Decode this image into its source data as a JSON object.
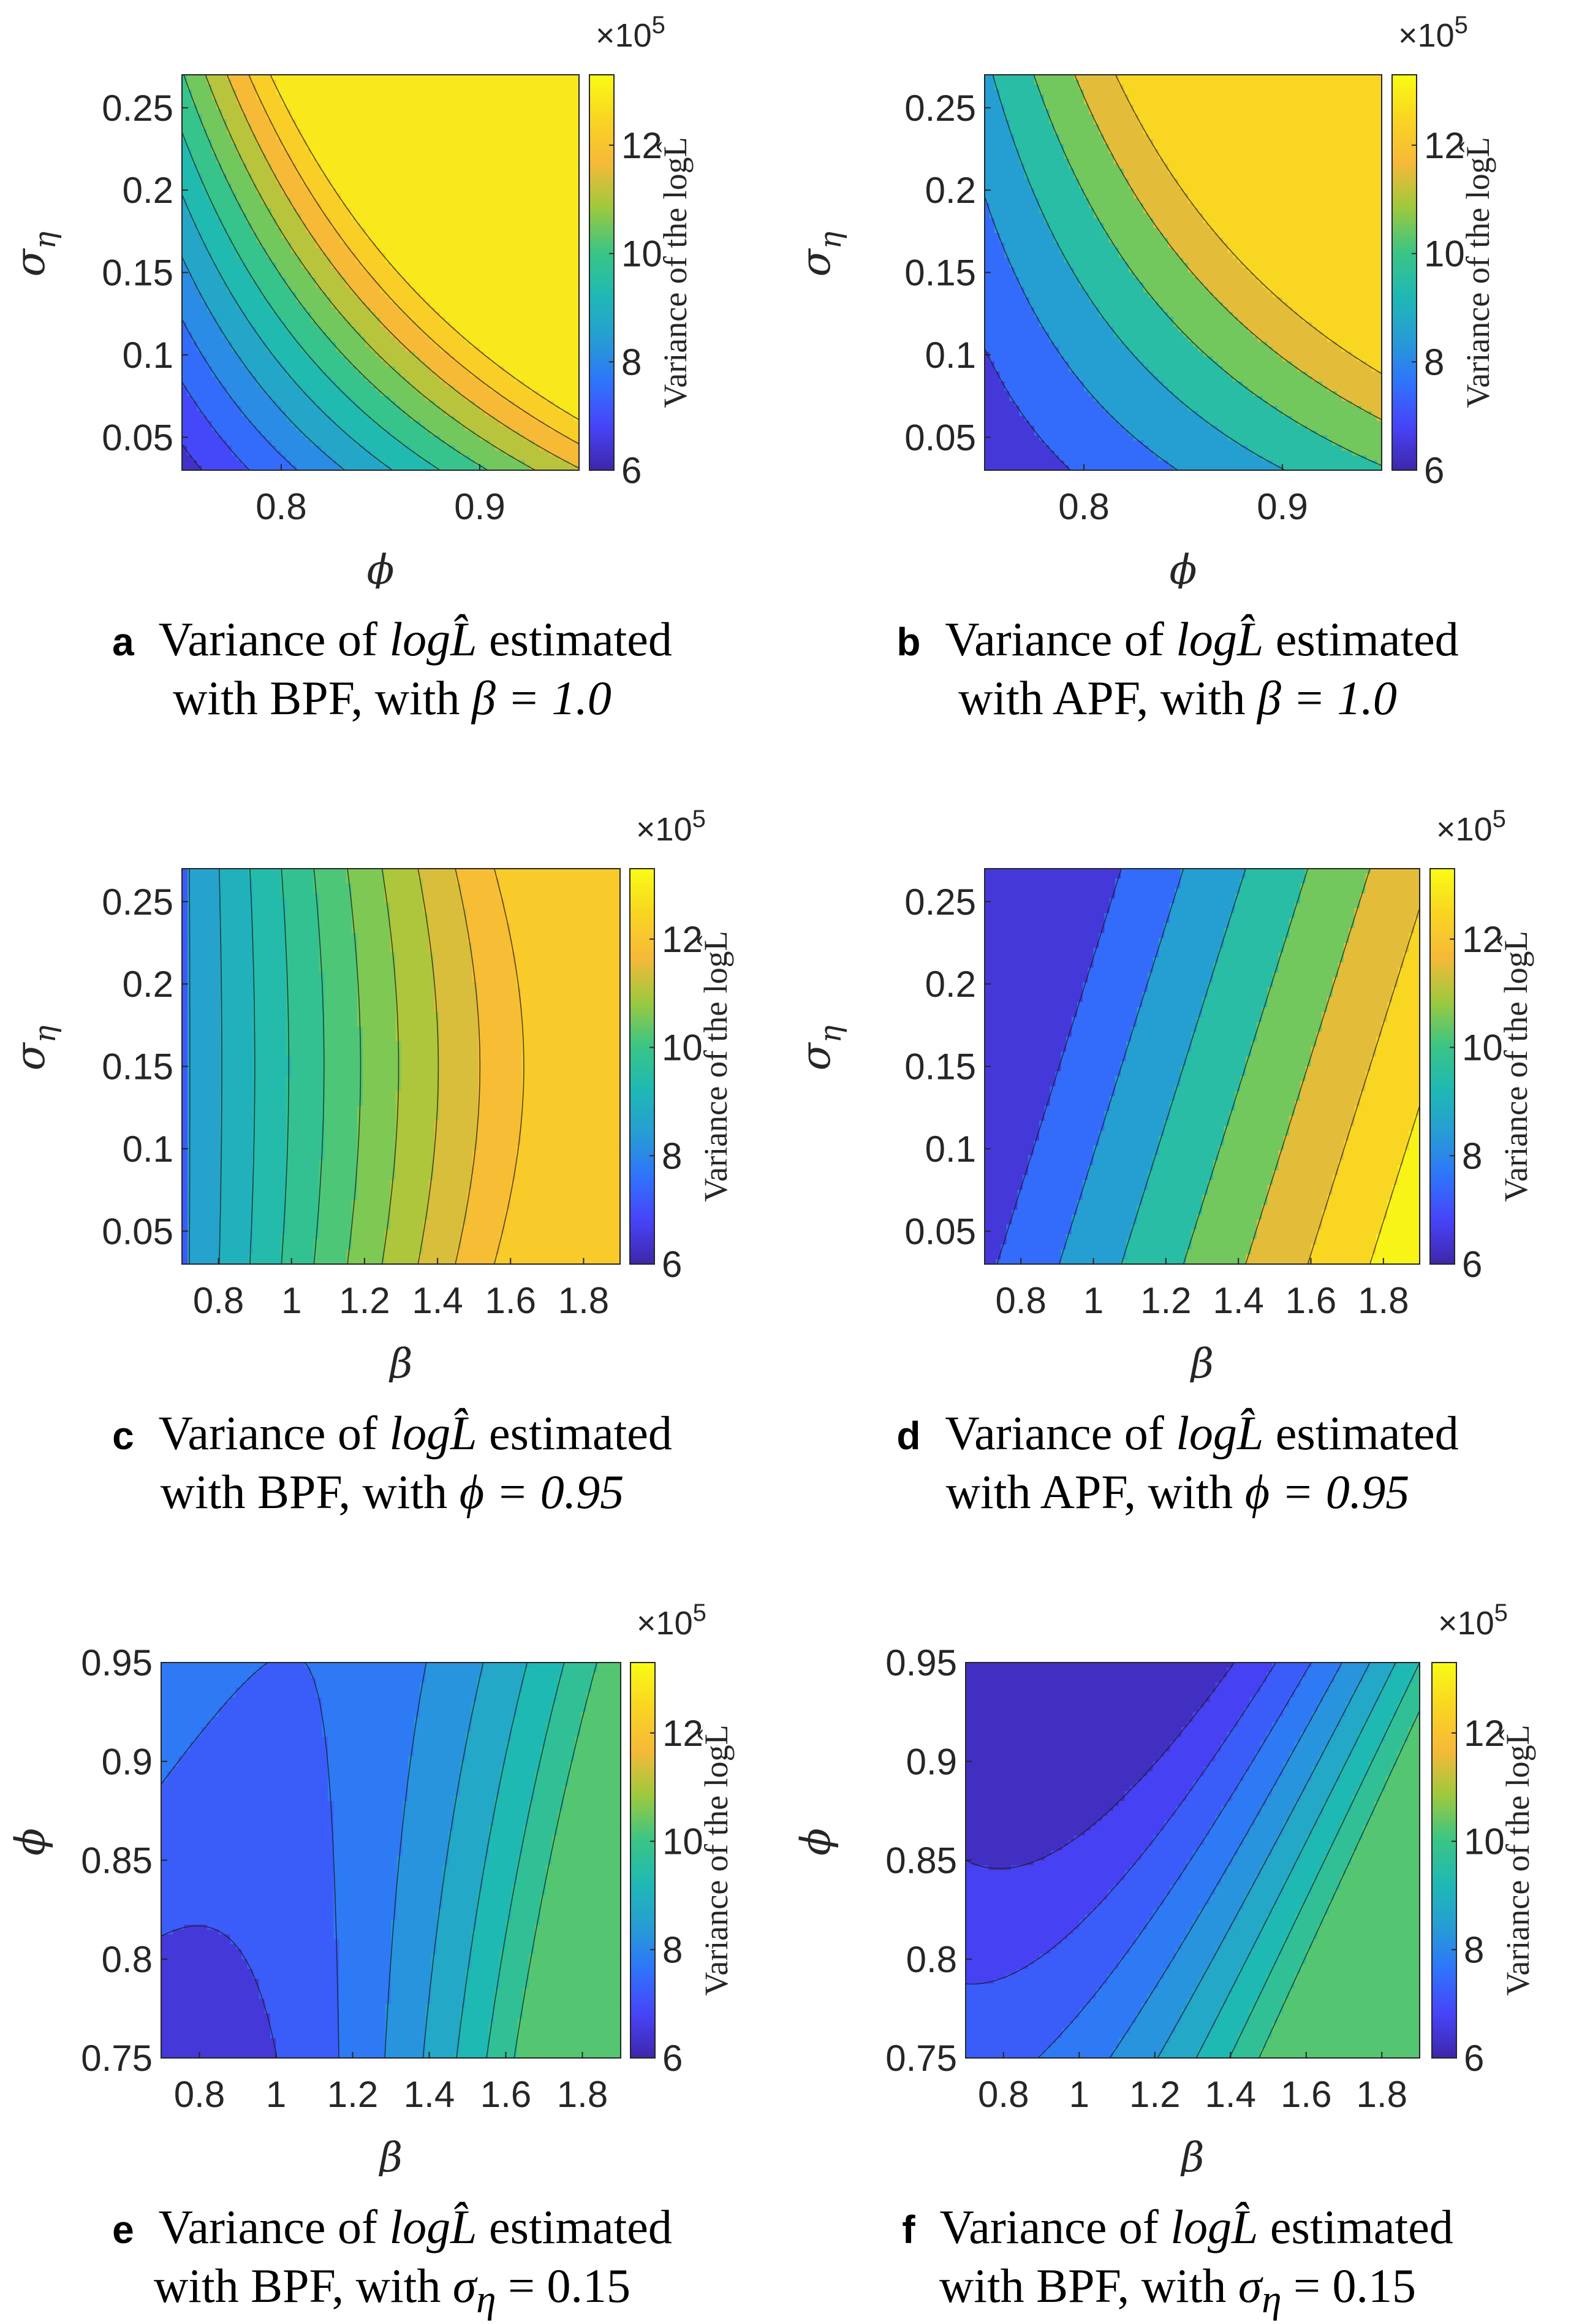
{
  "chart_data": [
    {
      "panel": "a",
      "type": "contour",
      "caption_parts": [
        "Variance of",
        "logL̂",
        "estimated",
        "with BPF, with",
        "β = 1.0"
      ],
      "xlabel": "ϕ",
      "ylabel": "σ",
      "ylabel_sub": "η",
      "xlim": [
        0.75,
        0.95
      ],
      "ylim": [
        0.03,
        0.27
      ],
      "xticks": [
        "0.8",
        "0.9"
      ],
      "xtick_values": [
        0.8,
        0.9
      ],
      "yticks": [
        "0.05",
        "0.1",
        "0.15",
        "0.2",
        "0.25"
      ],
      "ytick_values": [
        0.05,
        0.1,
        0.15,
        0.2,
        0.25
      ],
      "colorbar": {
        "label": "Variance of the logL̂",
        "exponent": "×10",
        "exponent_power": "5",
        "ticks": [
          "6",
          "8",
          "10",
          "12"
        ],
        "tick_values": [
          6,
          8,
          10,
          12
        ],
        "range": [
          6,
          13.3
        ]
      },
      "levels": [
        6.6,
        7.2,
        7.8,
        8.4,
        9.0,
        9.6,
        10.2,
        10.8,
        11.4,
        12.0,
        12.6
      ],
      "gen": {
        "base": 6.35,
        "cx": 5.0,
        "cy": 3.8,
        "cxy": 6.0,
        "cxx": 0,
        "ky": 0
      }
    },
    {
      "panel": "b",
      "type": "contour",
      "caption_parts": [
        "Variance of",
        "logL̂",
        "estimated",
        "with APF, with",
        "β = 1.0"
      ],
      "xlabel": "ϕ",
      "ylabel": "σ",
      "ylabel_sub": "η",
      "xlim": [
        0.75,
        0.95
      ],
      "ylim": [
        0.03,
        0.27
      ],
      "xticks": [
        "0.8",
        "0.9"
      ],
      "xtick_values": [
        0.8,
        0.9
      ],
      "yticks": [
        "0.05",
        "0.1",
        "0.15",
        "0.2",
        "0.25"
      ],
      "ytick_values": [
        0.05,
        0.1,
        0.15,
        0.2,
        0.25
      ],
      "colorbar": {
        "label": "Variance of the logL̂",
        "exponent": "×10",
        "exponent_power": "5",
        "ticks": [
          "6",
          "8",
          "10",
          "12"
        ],
        "tick_values": [
          6,
          8,
          10,
          12
        ],
        "range": [
          6,
          13.3
        ]
      },
      "levels": [
        7.0,
        8.0,
        9.0,
        10.0,
        11.0,
        12.0
      ],
      "gen": {
        "base": 6.2,
        "cx": 3.7,
        "cy": 2.6,
        "cxy": 6.0,
        "cxx": 0,
        "ky": 0
      }
    },
    {
      "panel": "c",
      "type": "contour",
      "caption_parts": [
        "Variance of",
        "logL̂",
        "estimated",
        "with BPF, with",
        "ϕ = 0.95"
      ],
      "xlabel": "β",
      "ylabel": "σ",
      "ylabel_sub": "η",
      "xlim": [
        0.7,
        1.9
      ],
      "ylim": [
        0.03,
        0.27
      ],
      "xticks": [
        "0.8",
        "1",
        "1.2",
        "1.4",
        "1.6",
        "1.8"
      ],
      "xtick_values": [
        0.8,
        1.0,
        1.2,
        1.4,
        1.6,
        1.8
      ],
      "yticks": [
        "0.05",
        "0.1",
        "0.15",
        "0.2",
        "0.25"
      ],
      "ytick_values": [
        0.05,
        0.1,
        0.15,
        0.2,
        0.25
      ],
      "colorbar": {
        "label": "Variance of the logL̂",
        "exponent": "×10",
        "exponent_power": "5",
        "ticks": [
          "6",
          "8",
          "10",
          "12"
        ],
        "tick_values": [
          6,
          8,
          10,
          12
        ],
        "range": [
          6,
          13.3
        ]
      },
      "levels": [
        8.4,
        8.8,
        9.2,
        9.6,
        10.0,
        10.4,
        10.8,
        11.2,
        11.6,
        12.0
      ],
      "gen": {
        "clampmax": 12.5,
        "base": 8.3,
        "cx": 5.6,
        "cy": 0,
        "cxy": 0,
        "cxx": -1.1,
        "ky": 1.5
      }
    },
    {
      "panel": "d",
      "type": "contour",
      "caption_parts": [
        "Variance of",
        "logL̂",
        "estimated",
        "with APF, with",
        "ϕ = 0.95"
      ],
      "xlabel": "β",
      "ylabel": "σ",
      "ylabel_sub": "η",
      "xlim": [
        0.7,
        1.9
      ],
      "ylim": [
        0.03,
        0.27
      ],
      "xticks": [
        "0.8",
        "1",
        "1.2",
        "1.4",
        "1.6",
        "1.8"
      ],
      "xtick_values": [
        0.8,
        1.0,
        1.2,
        1.4,
        1.6,
        1.8
      ],
      "yticks": [
        "0.05",
        "0.1",
        "0.15",
        "0.2",
        "0.25"
      ],
      "ytick_values": [
        0.05,
        0.1,
        0.15,
        0.2,
        0.25
      ],
      "colorbar": {
        "label": "Variance of the logL̂",
        "exponent": "×10",
        "exponent_power": "5",
        "ticks": [
          "6",
          "8",
          "10",
          "12"
        ],
        "tick_values": [
          6,
          8,
          10,
          12
        ],
        "range": [
          6,
          13.3
        ]
      },
      "levels": [
        7.0,
        8.0,
        9.0,
        10.0,
        11.0,
        12.0,
        13.0
      ],
      "gen": {
        "base": 6.8,
        "cx": 7.0,
        "cy": -2.0,
        "cxy": 0,
        "cxx": 0,
        "ky": 0
      }
    },
    {
      "panel": "e",
      "type": "contour",
      "caption_parts": [
        "Variance of",
        "logL̂",
        "estimated",
        "with BPF, with",
        "σ",
        "η",
        "= 0.15"
      ],
      "xlabel": "β",
      "ylabel": "ϕ",
      "ylabel_sub": "",
      "xlim": [
        0.7,
        1.9
      ],
      "ylim": [
        0.75,
        0.95
      ],
      "xticks": [
        "0.8",
        "1",
        "1.2",
        "1.4",
        "1.6",
        "1.8"
      ],
      "xtick_values": [
        0.8,
        1.0,
        1.2,
        1.4,
        1.6,
        1.8
      ],
      "yticks": [
        "0.75",
        "0.8",
        "0.85",
        "0.9",
        "0.95"
      ],
      "ytick_values": [
        0.75,
        0.8,
        0.85,
        0.9,
        0.95
      ],
      "colorbar": {
        "label": "Variance of the logL̂",
        "exponent": "×10",
        "exponent_power": "5",
        "ticks": [
          "6",
          "8",
          "10",
          "12"
        ],
        "tick_values": [
          6,
          8,
          10,
          12
        ],
        "range": [
          6,
          13.3
        ]
      },
      "levels": [
        7.0,
        7.5,
        8.0,
        8.5,
        9.0,
        9.5,
        10.0
      ],
      "gen": {
        "base": 6.6,
        "cx": 0.2,
        "cy": 1.3,
        "cxy": -3.2,
        "cxx": 5.5,
        "ky": 0
      }
    },
    {
      "panel": "f",
      "type": "contour",
      "caption_parts": [
        "Variance of",
        "logL̂",
        "estimated",
        "with BPF, with",
        "σ",
        "η",
        "= 0.15"
      ],
      "xlabel": "β",
      "ylabel": "ϕ",
      "ylabel_sub": "",
      "xlim": [
        0.7,
        1.9
      ],
      "ylim": [
        0.75,
        0.95
      ],
      "xticks": [
        "0.8",
        "1",
        "1.2",
        "1.4",
        "1.6",
        "1.8"
      ],
      "xtick_values": [
        0.8,
        1.0,
        1.2,
        1.4,
        1.6,
        1.8
      ],
      "yticks": [
        "0.75",
        "0.8",
        "0.85",
        "0.9",
        "0.95"
      ],
      "ytick_values": [
        0.75,
        0.8,
        0.85,
        0.9,
        0.95
      ],
      "colorbar": {
        "label": "Variance of the logL̂",
        "exponent": "×10",
        "exponent_power": "5",
        "ticks": [
          "6",
          "8",
          "10",
          "12"
        ],
        "tick_values": [
          6,
          8,
          10,
          12
        ],
        "range": [
          6,
          13.3
        ]
      },
      "levels": [
        6.5,
        7.0,
        7.5,
        8.0,
        8.5,
        9.0,
        9.5,
        10.0
      ],
      "gen": {
        "base": 7.3,
        "cx": 0.3,
        "cy": -1.6,
        "cxy": -2.5,
        "cxx": 6.0,
        "ky": 0
      }
    }
  ]
}
